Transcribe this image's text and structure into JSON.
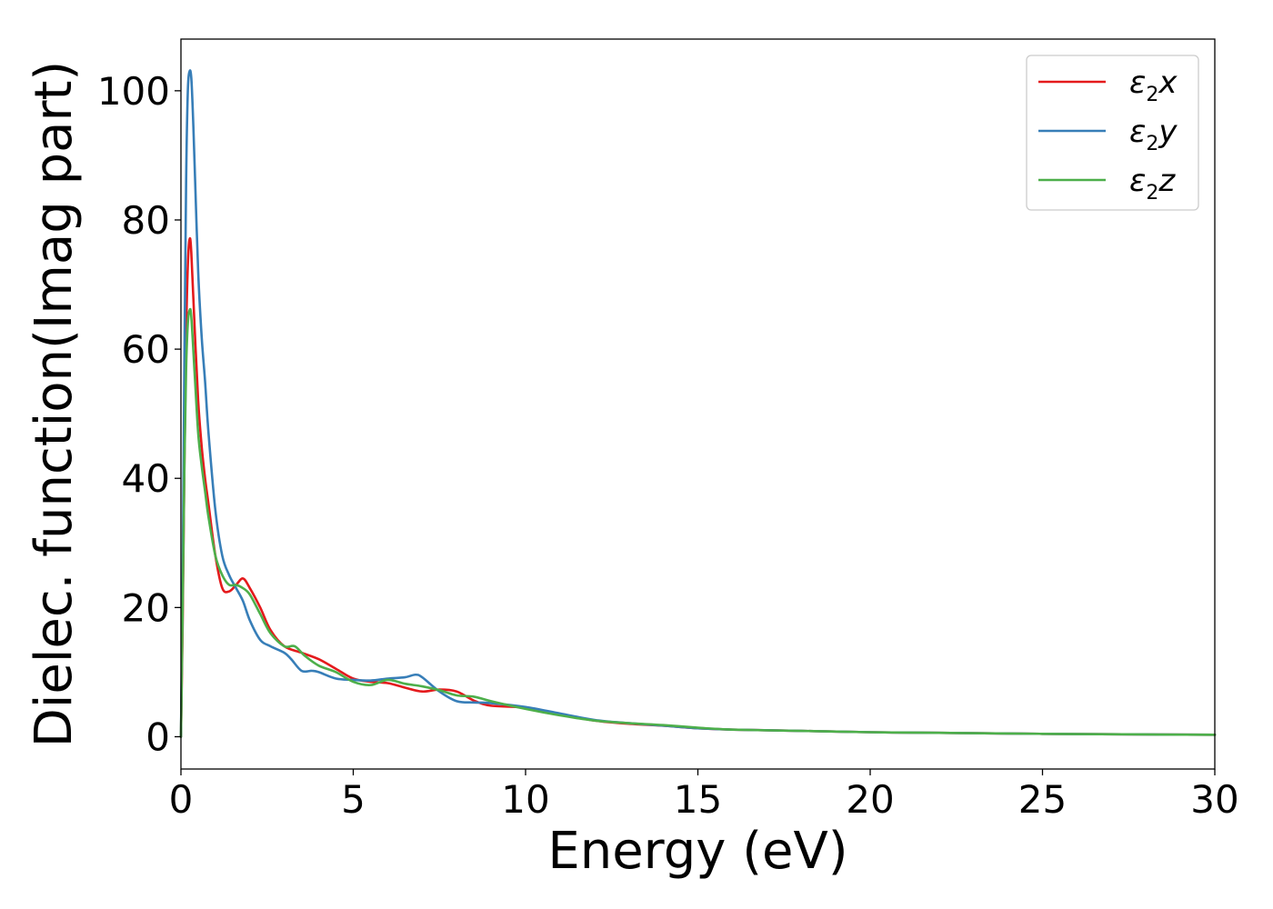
{
  "chart_data": {
    "type": "line",
    "title": "",
    "xlabel": "Energy (eV)",
    "ylabel": "Dielec. function(Imag part)",
    "xlim": [
      0,
      30
    ],
    "ylim": [
      -5,
      108
    ],
    "xticks": [
      0,
      5,
      10,
      15,
      20,
      25,
      30
    ],
    "yticks": [
      0,
      20,
      40,
      60,
      80,
      100
    ],
    "grid": false,
    "legend_position": "top-right",
    "series": [
      {
        "name": "ε2x",
        "legend_base": "ε",
        "legend_sub": "2",
        "legend_suffix": "x",
        "color": "#e41a1c",
        "x": [
          0,
          0.05,
          0.1,
          0.15,
          0.2,
          0.25,
          0.3,
          0.4,
          0.5,
          0.6,
          0.7,
          0.8,
          1.0,
          1.2,
          1.4,
          1.6,
          1.8,
          2.0,
          2.3,
          2.6,
          3.0,
          3.5,
          4.0,
          4.5,
          5.0,
          5.5,
          6.0,
          6.5,
          7.0,
          7.5,
          8.0,
          8.5,
          9.0,
          10.0,
          11.0,
          12.0,
          13.0,
          14.0,
          15.0,
          16.0,
          18.0,
          20.0,
          22.0,
          25.0,
          28.0,
          30.0
        ],
        "y": [
          0,
          18,
          42,
          62,
          73,
          77,
          75,
          63,
          52,
          45,
          40,
          36,
          28,
          23,
          22.5,
          23.5,
          24.5,
          23,
          20,
          16.5,
          14,
          13,
          12,
          10.5,
          9,
          8.5,
          8.3,
          7.6,
          7,
          7.3,
          7,
          5.6,
          4.8,
          4.5,
          3.5,
          2.5,
          2.0,
          1.7,
          1.3,
          1.1,
          0.9,
          0.7,
          0.6,
          0.45,
          0.35,
          0.3
        ]
      },
      {
        "name": "ε2y",
        "legend_base": "ε",
        "legend_sub": "2",
        "legend_suffix": "y",
        "color": "#377eb8",
        "x": [
          0,
          0.05,
          0.1,
          0.15,
          0.2,
          0.25,
          0.3,
          0.35,
          0.4,
          0.5,
          0.6,
          0.7,
          0.8,
          1.0,
          1.2,
          1.4,
          1.6,
          1.8,
          2.0,
          2.3,
          2.6,
          3.0,
          3.2,
          3.5,
          3.8,
          4.0,
          4.5,
          5.0,
          5.5,
          6.0,
          6.5,
          6.8,
          7.0,
          7.5,
          8.0,
          8.5,
          9.0,
          10.0,
          11.0,
          12.0,
          13.0,
          14.0,
          15.0,
          16.0,
          18.0,
          20.0,
          22.0,
          25.0,
          28.0,
          30.0
        ],
        "y": [
          0,
          25,
          58,
          86,
          100,
          103,
          102,
          96,
          88,
          72,
          62,
          55,
          47,
          35,
          28,
          25,
          23,
          21,
          18,
          15,
          14,
          13,
          12,
          10.2,
          10.2,
          10,
          9,
          8.8,
          8.7,
          9,
          9.2,
          9.6,
          9.2,
          7,
          5.5,
          5.3,
          5.2,
          4.6,
          3.6,
          2.6,
          2.1,
          1.7,
          1.3,
          1.1,
          0.9,
          0.7,
          0.6,
          0.45,
          0.35,
          0.3
        ]
      },
      {
        "name": "ε2z",
        "legend_base": "ε",
        "legend_sub": "2",
        "legend_suffix": "z",
        "color": "#4daf4a",
        "x": [
          0,
          0.05,
          0.1,
          0.15,
          0.2,
          0.25,
          0.3,
          0.4,
          0.5,
          0.6,
          0.7,
          0.8,
          1.0,
          1.2,
          1.4,
          1.6,
          1.8,
          2.0,
          2.3,
          2.6,
          3.0,
          3.3,
          3.6,
          4.0,
          4.5,
          5.0,
          5.5,
          6.0,
          6.5,
          7.0,
          7.5,
          8.0,
          8.5,
          9.0,
          10.0,
          11.0,
          12.0,
          13.0,
          14.0,
          15.0,
          16.0,
          18.0,
          20.0,
          22.0,
          25.0,
          28.0,
          30.0
        ],
        "y": [
          0,
          20,
          42,
          57,
          64,
          66,
          65,
          56,
          47,
          42,
          38,
          34,
          28,
          25,
          23.5,
          23.5,
          23,
          22,
          19,
          16,
          14,
          14,
          12.5,
          11,
          10,
          8.5,
          8,
          8.8,
          8.2,
          7.8,
          7.2,
          6.4,
          6.2,
          5.5,
          4.3,
          3.3,
          2.5,
          2.1,
          1.8,
          1.4,
          1.1,
          0.9,
          0.7,
          0.6,
          0.45,
          0.35,
          0.3
        ]
      }
    ]
  }
}
